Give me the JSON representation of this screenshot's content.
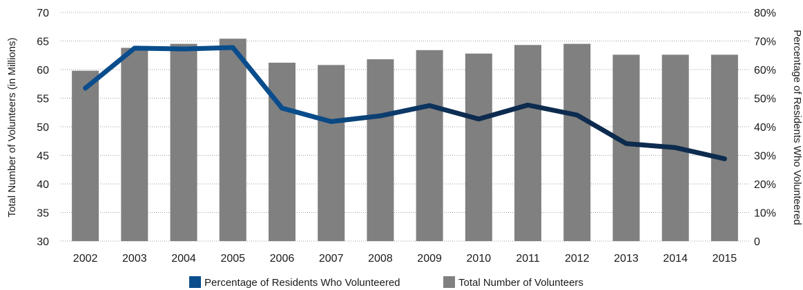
{
  "chart_data": {
    "type": "bar",
    "categories": [
      "2002",
      "2003",
      "2004",
      "2005",
      "2006",
      "2007",
      "2008",
      "2009",
      "2010",
      "2011",
      "2012",
      "2013",
      "2014",
      "2015"
    ],
    "series": [
      {
        "name": "Total Number of Volunteers",
        "type": "bar",
        "axis": "left",
        "values": [
          59.8,
          63.8,
          64.5,
          65.4,
          61.2,
          60.8,
          61.8,
          63.4,
          62.8,
          64.3,
          64.5,
          62.6,
          62.6,
          62.6
        ]
      },
      {
        "name": "Percentage of Residents Who Volunteered",
        "type": "line",
        "axis": "right",
        "values": [
          53.5,
          67.5,
          67.2,
          67.7,
          46.5,
          41.8,
          43.8,
          47.4,
          42.7,
          47.6,
          44.1,
          34.1,
          32.7,
          28.8
        ]
      }
    ],
    "ylabel": "Total Number of Volunteers (in Millions)",
    "ylabel_right": "Percentage of Residents Who Volunteered",
    "ylim": [
      30,
      70
    ],
    "yticks": [
      "30",
      "35",
      "40",
      "45",
      "50",
      "55",
      "60",
      "65",
      "70"
    ],
    "ylim_right": [
      0,
      80
    ],
    "yticks_right": [
      "0",
      "10%",
      "20%",
      "30%",
      "40%",
      "50%",
      "60%",
      "70%",
      "80%"
    ],
    "grid": "horizontal dotted",
    "legend_position": "bottom",
    "colors": {
      "bar": "#808080",
      "line": "#0a4d8c",
      "line_dark": "#0d2b4e"
    }
  }
}
